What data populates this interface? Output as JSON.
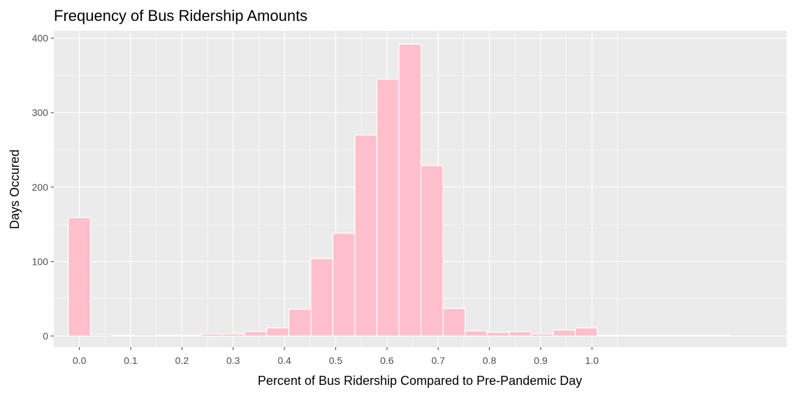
{
  "chart_data": {
    "type": "bar",
    "title": "Frequency of Bus Ridership Amounts",
    "xlabel": "Percent of Bus Ridership Compared to Pre-Pandemic Day",
    "ylabel": "Days Occured",
    "xlim": [
      -0.05,
      1.38
    ],
    "ylim": [
      -15,
      410
    ],
    "x_ticks": [
      0.0,
      0.1,
      0.2,
      0.3,
      0.4,
      0.5,
      0.6,
      0.7,
      0.8,
      0.9,
      1.0
    ],
    "x_tick_labels": [
      "0.0",
      "0.1",
      "0.2",
      "0.3",
      "0.4",
      "0.5",
      "0.6",
      "0.7",
      "0.8",
      "0.9",
      "1.0"
    ],
    "y_ticks": [
      0,
      100,
      200,
      300,
      400
    ],
    "y_tick_labels": [
      "0",
      "100",
      "200",
      "300",
      "400"
    ],
    "bin_width": 0.043,
    "bin_centers": [
      0.0,
      0.043,
      0.086,
      0.129,
      0.172,
      0.215,
      0.258,
      0.301,
      0.344,
      0.387,
      0.43,
      0.473,
      0.516,
      0.559,
      0.602,
      0.645,
      0.688,
      0.731,
      0.774,
      0.817,
      0.86,
      0.903,
      0.946,
      0.989,
      1.032,
      1.075,
      1.118,
      1.161,
      1.204,
      1.247,
      1.29
    ],
    "values": [
      159,
      2,
      1,
      0,
      1,
      1,
      3,
      3,
      6,
      11,
      36,
      104,
      138,
      270,
      345,
      392,
      229,
      37,
      7,
      5,
      6,
      3,
      8,
      11,
      1,
      1,
      1,
      1,
      1,
      1,
      0
    ],
    "bar_color": "#FFC0CB",
    "bar_outline": "#FFFFFF",
    "panel_background": "#EBEBEB",
    "grid": true
  }
}
